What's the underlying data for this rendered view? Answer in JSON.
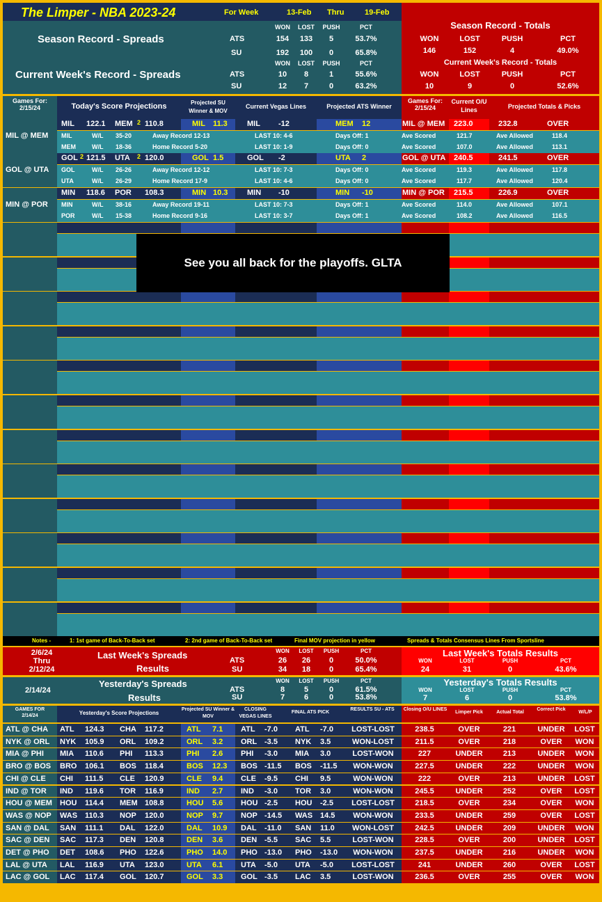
{
  "header": {
    "title": "The Limper - NBA 2023-24",
    "for_week": "For Week",
    "week_start": "13-Feb",
    "thru": "Thru",
    "week_end": "19-Feb"
  },
  "season_spreads": {
    "label": "Season Record - Spreads",
    "cols": [
      "WON",
      "LOST",
      "PUSH",
      "PCT"
    ],
    "ats": [
      "ATS",
      "154",
      "133",
      "5",
      "53.7%"
    ],
    "su": [
      "SU",
      "192",
      "100",
      "0",
      "65.8%"
    ]
  },
  "week_spreads": {
    "label": "Current Week's Record - Spreads",
    "cols": [
      "WON",
      "LOST",
      "PUSH",
      "PCT"
    ],
    "ats": [
      "ATS",
      "10",
      "8",
      "1",
      "55.6%"
    ],
    "su": [
      "SU",
      "12",
      "7",
      "0",
      "63.2%"
    ]
  },
  "season_totals": {
    "label": "Season Record - Totals",
    "cols": [
      "WON",
      "LOST",
      "PUSH",
      "PCT"
    ],
    "vals": [
      "146",
      "152",
      "4",
      "49.0%"
    ]
  },
  "week_totals": {
    "label": "Current Week's Record - Totals",
    "cols": [
      "WON",
      "LOST",
      "PUSH",
      "PCT"
    ],
    "vals": [
      "10",
      "9",
      "0",
      "52.6%"
    ]
  },
  "today_header": {
    "games_for": "Games For:",
    "date": "2/15/24",
    "projections": "Today's Score Projections",
    "su_winner": "Projected SU Winner & MOV",
    "vegas": "Current Vegas Lines",
    "ats_winner": "Projected ATS Winner",
    "games_for2": "Games For:",
    "date2": "2/15/24",
    "current_ou": "Current O/U Lines",
    "totals_picks": "Projected Totals & Picks"
  },
  "today_games": [
    {
      "matchup": "MIL @ MEM",
      "t1": "MIL",
      "s1": "122.1",
      "b1": "",
      "t2": "MEM",
      "b2": "2",
      "s2": "110.8",
      "su_team": "MIL",
      "su_mov": "11.3",
      "vl_team": "MIL",
      "vl_line": "-12",
      "ats_team": "MEM",
      "ats_line": "12",
      "ou_matchup": "MIL @ MEM",
      "ou_line": "223.0",
      "proj_total": "232.8",
      "pick": "OVER",
      "r1": {
        "team": "MIL",
        "wl": "W/L",
        "rec": "35-20",
        "split": "Away Record 12-13",
        "last10": "LAST 10: 4-6",
        "days": "Days Off: 1",
        "scored": "121.7",
        "allowed": "118.4"
      },
      "r2": {
        "team": "MEM",
        "wl": "W/L",
        "rec": "18-36",
        "split": "Home Record 5-20",
        "last10": "LAST 10: 1-9",
        "days": "Days Off: 0",
        "scored": "107.0",
        "allowed": "113.1"
      }
    },
    {
      "matchup": "GOL @ UTA",
      "t1": "GOL",
      "s1": "121.5",
      "b1": "2",
      "t2": "UTA",
      "b2": "2",
      "s2": "120.0",
      "su_team": "GOL",
      "su_mov": "1.5",
      "vl_team": "GOL",
      "vl_line": "-2",
      "ats_team": "UTA",
      "ats_line": "2",
      "ou_matchup": "GOL @ UTA",
      "ou_line": "240.5",
      "proj_total": "241.5",
      "pick": "OVER",
      "r1": {
        "team": "GOL",
        "wl": "W/L",
        "rec": "26-26",
        "split": "Away Record 12-12",
        "last10": "LAST 10: 7-3",
        "days": "Days Off: 0",
        "scored": "119.3",
        "allowed": "117.8"
      },
      "r2": {
        "team": "UTA",
        "wl": "W/L",
        "rec": "26-29",
        "split": "Home Record 17-9",
        "last10": "LAST 10: 4-6",
        "days": "Days Off: 0",
        "scored": "117.7",
        "allowed": "120.4"
      }
    },
    {
      "matchup": "MIN @ POR",
      "t1": "MIN",
      "s1": "118.6",
      "b1": "",
      "t2": "POR",
      "b2": "",
      "s2": "108.3",
      "su_team": "MIN",
      "su_mov": "10.3",
      "vl_team": "MIN",
      "vl_line": "-10",
      "ats_team": "MIN",
      "ats_line": "-10",
      "ou_matchup": "MIN @ POR",
      "ou_line": "215.5",
      "proj_total": "226.9",
      "pick": "OVER",
      "r1": {
        "team": "MIN",
        "wl": "W/L",
        "rec": "38-16",
        "split": "Away Record 19-11",
        "last10": "LAST 10: 7-3",
        "days": "Days Off: 1",
        "scored": "114.0",
        "allowed": "107.1"
      },
      "r2": {
        "team": "POR",
        "wl": "W/L",
        "rec": "15-38",
        "split": "Home Record 9-16",
        "last10": "LAST 10: 3-7",
        "days": "Days Off: 1",
        "scored": "108.2",
        "allowed": "116.5"
      }
    }
  ],
  "ave_scored": "Ave Scored",
  "ave_allowed": "Ave Allowed",
  "banner": "See you all back for the playoffs.  GLTA",
  "notes": [
    "Notes -",
    "1: 1st game of Back-To-Back set",
    "2: 2nd game of Back-To-Back set",
    "Final MOV projection in yellow",
    "Spreads & Totals Consensus Lines From Sportsline"
  ],
  "last_week": {
    "date1": "2/6/24",
    "thru": "Thru",
    "date2": "2/12/24",
    "label1": "Last Week's Spreads",
    "label2": "Results",
    "cols": [
      "WON",
      "LOST",
      "PUSH",
      "PCT"
    ],
    "ats": [
      "ATS",
      "26",
      "26",
      "0",
      "50.0%"
    ],
    "su": [
      "SU",
      "34",
      "18",
      "0",
      "65.4%"
    ],
    "tot_label": "Last Week's Totals Results",
    "tot_cols": [
      "WON",
      "LOST",
      "PUSH",
      "PCT"
    ],
    "tot": [
      "24",
      "31",
      "0",
      "43.6%"
    ]
  },
  "yesterday": {
    "date": "2/14/24",
    "label1": "Yesterday's Spreads",
    "label2": "Results",
    "cols": [
      "WON",
      "LOST",
      "PUSH",
      "PCT"
    ],
    "ats": [
      "ATS",
      "8",
      "5",
      "0",
      "61.5%"
    ],
    "su": [
      "SU",
      "7",
      "6",
      "0",
      "53.8%"
    ],
    "tot_label": "Yesterday's Totals Results",
    "tot_cols": [
      "WON",
      "LOST",
      "PUSH",
      "PCT"
    ],
    "tot": [
      "7",
      "6",
      "0",
      "53.8%"
    ]
  },
  "res_header": {
    "games_for": "GAMES FOR",
    "date": "2/14/24",
    "proj": "Yesterday's Score Projections",
    "su": "Projected SU Winner & MOV",
    "vegas": "CLOSING VEGAS LINES",
    "ats": "FINAL ATS PICK",
    "results": "RESULTS SU - ATS",
    "ou": "Closing O/U LINES",
    "pick": "Limper Pick",
    "actual": "Actual Total",
    "correct": "Correct Pick",
    "wlp": "W/L/P"
  },
  "results": [
    [
      "ATL @ CHA",
      "ATL",
      "124.3",
      "CHA",
      "117.2",
      "ATL",
      "7.1",
      "ATL",
      "-7.0",
      "ATL",
      "-7.0",
      "LOST-LOST",
      "238.5",
      "OVER",
      "221",
      "UNDER",
      "LOST"
    ],
    [
      "NYK @ ORL",
      "NYK",
      "105.9",
      "ORL",
      "109.2",
      "ORL",
      "3.2",
      "ORL",
      "-3.5",
      "NYK",
      "3.5",
      "WON-LOST",
      "211.5",
      "OVER",
      "218",
      "OVER",
      "WON"
    ],
    [
      "MIA @ PHI",
      "MIA",
      "110.6",
      "PHI",
      "113.3",
      "PHI",
      "2.6",
      "PHI",
      "-3.0",
      "MIA",
      "3.0",
      "LOST-WON",
      "227",
      "UNDER",
      "213",
      "UNDER",
      "WON"
    ],
    [
      "BRO @ BOS",
      "BRO",
      "106.1",
      "BOS",
      "118.4",
      "BOS",
      "12.3",
      "BOS",
      "-11.5",
      "BOS",
      "-11.5",
      "WON-WON",
      "227.5",
      "UNDER",
      "222",
      "UNDER",
      "WON"
    ],
    [
      "CHI @ CLE",
      "CHI",
      "111.5",
      "CLE",
      "120.9",
      "CLE",
      "9.4",
      "CLE",
      "-9.5",
      "CHI",
      "9.5",
      "WON-WON",
      "222",
      "OVER",
      "213",
      "UNDER",
      "LOST"
    ],
    [
      "IND @ TOR",
      "IND",
      "119.6",
      "TOR",
      "116.9",
      "IND",
      "2.7",
      "IND",
      "-3.0",
      "TOR",
      "3.0",
      "WON-WON",
      "245.5",
      "UNDER",
      "252",
      "OVER",
      "LOST"
    ],
    [
      "HOU @ MEM",
      "HOU",
      "114.4",
      "MEM",
      "108.8",
      "HOU",
      "5.6",
      "HOU",
      "-2.5",
      "HOU",
      "-2.5",
      "LOST-LOST",
      "218.5",
      "OVER",
      "234",
      "OVER",
      "WON"
    ],
    [
      "WAS @ NOP",
      "WAS",
      "110.3",
      "NOP",
      "120.0",
      "NOP",
      "9.7",
      "NOP",
      "-14.5",
      "WAS",
      "14.5",
      "WON-WON",
      "233.5",
      "UNDER",
      "259",
      "OVER",
      "LOST"
    ],
    [
      "SAN @ DAL",
      "SAN",
      "111.1",
      "DAL",
      "122.0",
      "DAL",
      "10.9",
      "DAL",
      "-11.0",
      "SAN",
      "11.0",
      "WON-LOST",
      "242.5",
      "UNDER",
      "209",
      "UNDER",
      "WON"
    ],
    [
      "SAC @ DEN",
      "SAC",
      "117.3",
      "DEN",
      "120.8",
      "DEN",
      "3.6",
      "DEN",
      "-5.5",
      "SAC",
      "5.5",
      "LOST-WON",
      "228.5",
      "OVER",
      "200",
      "UNDER",
      "LOST"
    ],
    [
      "DET @ PHO",
      "DET",
      "108.6",
      "PHO",
      "122.6",
      "PHO",
      "14.0",
      "PHO",
      "-13.0",
      "PHO",
      "-13.0",
      "WON-WON",
      "237.5",
      "UNDER",
      "216",
      "UNDER",
      "WON"
    ],
    [
      "LAL @ UTA",
      "LAL",
      "116.9",
      "UTA",
      "123.0",
      "UTA",
      "6.1",
      "UTA",
      "-5.0",
      "UTA",
      "-5.0",
      "LOST-LOST",
      "241",
      "UNDER",
      "260",
      "OVER",
      "LOST"
    ],
    [
      "LAC @ GOL",
      "LAC",
      "117.4",
      "GOL",
      "120.7",
      "GOL",
      "3.3",
      "GOL",
      "-3.5",
      "LAC",
      "3.5",
      "LOST-WON",
      "236.5",
      "OVER",
      "255",
      "OVER",
      "WON"
    ]
  ]
}
